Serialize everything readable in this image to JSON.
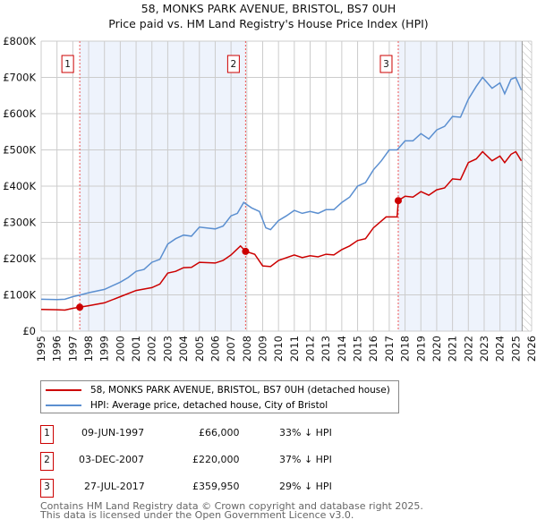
{
  "title": "58, MONKS PARK AVENUE, BRISTOL, BS7 0UH",
  "subtitle": "Price paid vs. HM Land Registry's House Price Index (HPI)",
  "colors": {
    "price": "#cc0000",
    "hpi": "#5b8fd0",
    "shade": "#eef3fc"
  },
  "chart_data": {
    "type": "line",
    "title": "58, MONKS PARK AVENUE, BRISTOL, BS7 0UH",
    "xlim": [
      1995,
      2026
    ],
    "ylim": [
      0,
      800000
    ],
    "x_ticks": [
      "1995",
      "1996",
      "1997",
      "1998",
      "1999",
      "2000",
      "2001",
      "2002",
      "2003",
      "2004",
      "2005",
      "2006",
      "2007",
      "2008",
      "2009",
      "2010",
      "2011",
      "2012",
      "2013",
      "2014",
      "2015",
      "2016",
      "2017",
      "2018",
      "2019",
      "2020",
      "2021",
      "2022",
      "2023",
      "2024",
      "2025",
      "2026"
    ],
    "y_ticks": [
      {
        "v": 0,
        "label": "£0"
      },
      {
        "v": 100000,
        "label": "£100K"
      },
      {
        "v": 200000,
        "label": "£200K"
      },
      {
        "v": 300000,
        "label": "£300K"
      },
      {
        "v": 400000,
        "label": "£400K"
      },
      {
        "v": 500000,
        "label": "£500K"
      },
      {
        "v": 600000,
        "label": "£600K"
      },
      {
        "v": 700000,
        "label": "£700K"
      },
      {
        "v": 800000,
        "label": "£800K"
      }
    ],
    "series": [
      {
        "name": "58, MONKS PARK AVENUE, BRISTOL, BS7 0UH (detached house)",
        "color": "#cc0000",
        "points": [
          [
            1995,
            60000
          ],
          [
            1996,
            59000
          ],
          [
            1996.5,
            58000
          ],
          [
            1997,
            63000
          ],
          [
            1997.44,
            66000
          ],
          [
            1998,
            70000
          ],
          [
            1999,
            78000
          ],
          [
            2000,
            95000
          ],
          [
            2001,
            112000
          ],
          [
            2002,
            120000
          ],
          [
            2002.5,
            130000
          ],
          [
            2003,
            160000
          ],
          [
            2003.5,
            165000
          ],
          [
            2004,
            175000
          ],
          [
            2004.5,
            176000
          ],
          [
            2005,
            190000
          ],
          [
            2006,
            188000
          ],
          [
            2006.5,
            195000
          ],
          [
            2007,
            210000
          ],
          [
            2007.6,
            235000
          ],
          [
            2007.92,
            220000
          ],
          [
            2008.5,
            212000
          ],
          [
            2009,
            180000
          ],
          [
            2009.5,
            178000
          ],
          [
            2010,
            195000
          ],
          [
            2011,
            210000
          ],
          [
            2011.5,
            203000
          ],
          [
            2012,
            208000
          ],
          [
            2012.5,
            205000
          ],
          [
            2013,
            212000
          ],
          [
            2013.5,
            210000
          ],
          [
            2014,
            225000
          ],
          [
            2014.5,
            235000
          ],
          [
            2015,
            250000
          ],
          [
            2015.5,
            255000
          ],
          [
            2016,
            285000
          ],
          [
            2016.8,
            315000
          ],
          [
            2017.5,
            315000
          ],
          [
            2017.57,
            359950
          ],
          [
            2018,
            372000
          ],
          [
            2018.5,
            370000
          ],
          [
            2019,
            385000
          ],
          [
            2019.5,
            375000
          ],
          [
            2020,
            390000
          ],
          [
            2020.5,
            395000
          ],
          [
            2021,
            420000
          ],
          [
            2021.5,
            418000
          ],
          [
            2022,
            465000
          ],
          [
            2022.5,
            475000
          ],
          [
            2022.9,
            495000
          ],
          [
            2023.5,
            470000
          ],
          [
            2024,
            483000
          ],
          [
            2024.3,
            465000
          ],
          [
            2024.7,
            488000
          ],
          [
            2025,
            495000
          ],
          [
            2025.35,
            470000
          ]
        ]
      },
      {
        "name": "HPI: Average price, detached house, City of Bristol",
        "color": "#5b8fd0",
        "points": [
          [
            1995,
            88000
          ],
          [
            1996,
            87000
          ],
          [
            1996.5,
            88000
          ],
          [
            1997,
            95000
          ],
          [
            1997.5,
            100000
          ],
          [
            1998,
            106000
          ],
          [
            1999,
            115000
          ],
          [
            2000,
            135000
          ],
          [
            2000.5,
            148000
          ],
          [
            2001,
            165000
          ],
          [
            2001.5,
            170000
          ],
          [
            2002,
            190000
          ],
          [
            2002.5,
            198000
          ],
          [
            2003,
            240000
          ],
          [
            2003.5,
            255000
          ],
          [
            2004,
            265000
          ],
          [
            2004.5,
            262000
          ],
          [
            2005,
            287000
          ],
          [
            2006,
            282000
          ],
          [
            2006.5,
            290000
          ],
          [
            2007,
            318000
          ],
          [
            2007.4,
            325000
          ],
          [
            2007.8,
            355000
          ],
          [
            2008.3,
            340000
          ],
          [
            2008.8,
            330000
          ],
          [
            2009.2,
            285000
          ],
          [
            2009.5,
            280000
          ],
          [
            2010,
            305000
          ],
          [
            2010.5,
            318000
          ],
          [
            2011,
            333000
          ],
          [
            2011.5,
            325000
          ],
          [
            2012,
            330000
          ],
          [
            2012.5,
            325000
          ],
          [
            2013,
            335000
          ],
          [
            2013.5,
            335000
          ],
          [
            2014,
            355000
          ],
          [
            2014.5,
            370000
          ],
          [
            2015,
            400000
          ],
          [
            2015.5,
            410000
          ],
          [
            2016,
            445000
          ],
          [
            2016.5,
            470000
          ],
          [
            2017,
            500000
          ],
          [
            2017.5,
            500000
          ],
          [
            2018,
            525000
          ],
          [
            2018.5,
            525000
          ],
          [
            2019,
            545000
          ],
          [
            2019.5,
            530000
          ],
          [
            2020,
            555000
          ],
          [
            2020.5,
            565000
          ],
          [
            2021,
            592000
          ],
          [
            2021.5,
            590000
          ],
          [
            2022,
            640000
          ],
          [
            2022.5,
            675000
          ],
          [
            2022.9,
            700000
          ],
          [
            2023.5,
            670000
          ],
          [
            2024,
            685000
          ],
          [
            2024.3,
            655000
          ],
          [
            2024.7,
            695000
          ],
          [
            2025,
            700000
          ],
          [
            2025.35,
            665000
          ]
        ]
      }
    ],
    "sales": [
      {
        "n": "1",
        "x": 1997.44,
        "y": 66000,
        "date": "09-JUN-1997",
        "price": "£66,000",
        "hpi": "33% ↓ HPI"
      },
      {
        "n": "2",
        "x": 2007.92,
        "y": 220000,
        "date": "03-DEC-2007",
        "price": "£220,000",
        "hpi": "37% ↓ HPI"
      },
      {
        "n": "3",
        "x": 2017.57,
        "y": 359950,
        "date": "27-JUL-2017",
        "price": "£359,950",
        "hpi": "29% ↓ HPI"
      }
    ],
    "data_end": 2025.4
  },
  "legend": {
    "price": "58, MONKS PARK AVENUE, BRISTOL, BS7 0UH (detached house)",
    "hpi": "HPI: Average price, detached house, City of Bristol"
  },
  "footer": [
    "Contains HM Land Registry data © Crown copyright and database right 2025.",
    "This data is licensed under the Open Government Licence v3.0."
  ]
}
